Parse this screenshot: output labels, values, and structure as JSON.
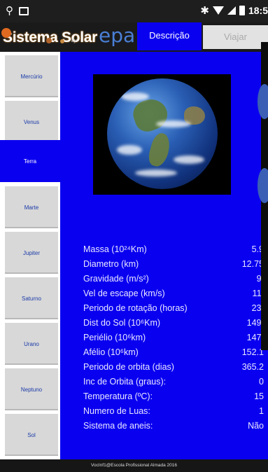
{
  "status_bar": {
    "time": "18:5"
  },
  "header": {
    "logo_title": "Sistema Solar",
    "logo_epa": "epa",
    "logo_by": "by",
    "tabs": [
      {
        "label": "Descrição",
        "active": true
      },
      {
        "label": "Viajar",
        "active": false
      }
    ]
  },
  "sidebar": {
    "items": [
      {
        "label": "Mercúrio",
        "active": false
      },
      {
        "label": "Venus",
        "active": false
      },
      {
        "label": "Terra",
        "active": true
      },
      {
        "label": "Marte",
        "active": false
      },
      {
        "label": "Jupiter",
        "active": false
      },
      {
        "label": "Saturno",
        "active": false
      },
      {
        "label": "Urano",
        "active": false
      },
      {
        "label": "Neptuno",
        "active": false
      },
      {
        "label": "Sol",
        "active": false
      }
    ]
  },
  "planet": {
    "image_icon": "earth-globe-image",
    "properties": [
      {
        "label": "Massa (10²⁴Km)",
        "value": "5.9"
      },
      {
        "label": "Diametro (km)",
        "value": "12.75"
      },
      {
        "label": "Gravidade (m/s²)",
        "value": "9."
      },
      {
        "label": "Vel de escape (km/s)",
        "value": "11."
      },
      {
        "label": "Periodo de rotação (horas)",
        "value": "23."
      },
      {
        "label": "Dist do Sol (10⁶Km)",
        "value": "149."
      },
      {
        "label": "Periélio (10⁶km)",
        "value": "147."
      },
      {
        "label": "Afélio (10⁶km)",
        "value": "152.1"
      },
      {
        "label": "Periodo de orbita (dias)",
        "value": "365.2"
      },
      {
        "label": "Inc de Orbita (graus):",
        "value": "0"
      },
      {
        "label": "Temperatura (ºC):",
        "value": "15"
      },
      {
        "label": "Numero de Luas:",
        "value": "1"
      },
      {
        "label": "Sistema de aneis:",
        "value": "Não"
      }
    ]
  },
  "footer": {
    "text": "VocInf1@Escola Profissional Almada 2016"
  },
  "colors": {
    "accent": "#0a00f0",
    "sidebar_item": "#d8d8d8",
    "sidebar_text": "#1a3aa8",
    "tab_inactive": "#e2e2e2"
  }
}
